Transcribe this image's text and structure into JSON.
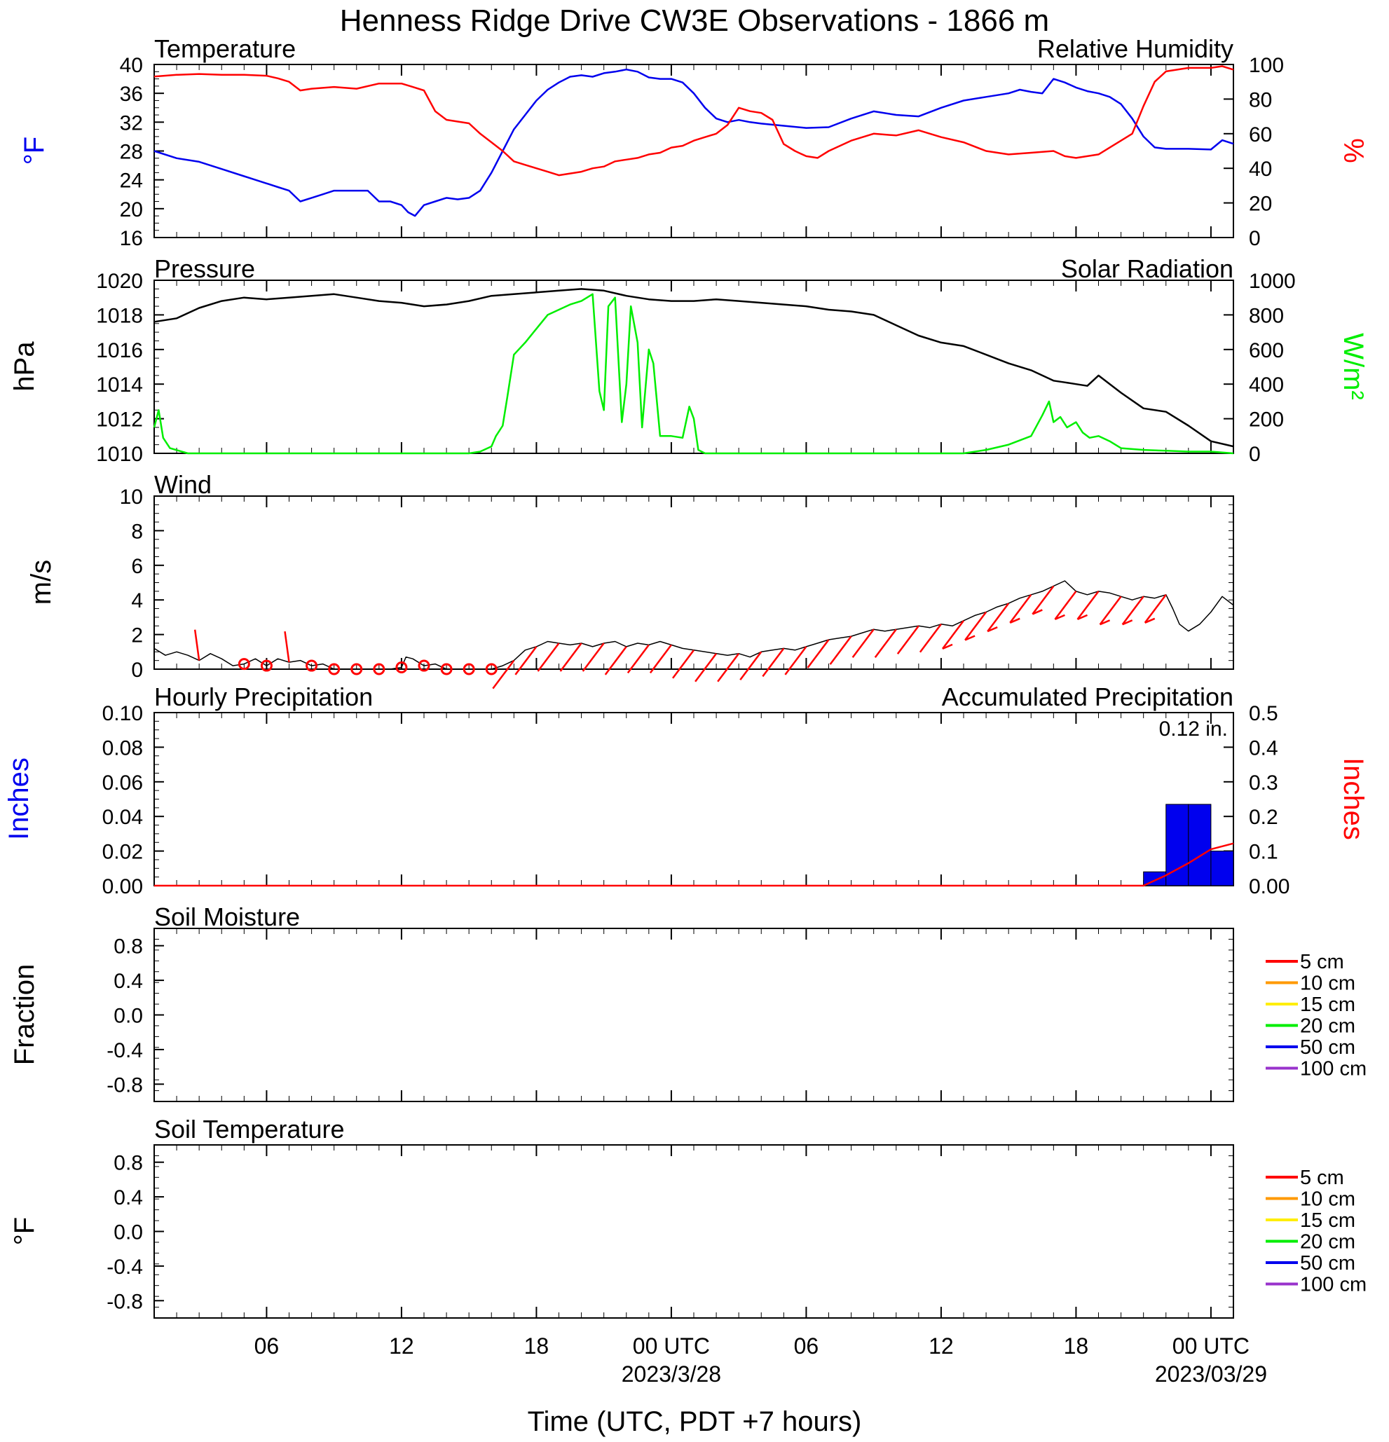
{
  "title": "Henness Ridge Drive CW3E Observations - 1866 m",
  "colors": {
    "temperature": "#0000ee",
    "humidity": "#ff0000",
    "pressure": "#000000",
    "solar": "#00ee00",
    "wind": "#000000",
    "barbs": "#ff0000",
    "hourly_precip": "#0000ee",
    "accum_precip": "#ff0000"
  },
  "x_axis": {
    "label": "Time (UTC, PDT +7 hours)",
    "range_hours": [
      0,
      48
    ],
    "ticks": [
      {
        "hour": 5,
        "label": "06",
        "sub": ""
      },
      {
        "hour": 11,
        "label": "12",
        "sub": ""
      },
      {
        "hour": 17,
        "label": "18",
        "sub": ""
      },
      {
        "hour": 23,
        "label": "00 UTC",
        "sub": "2023/3/28"
      },
      {
        "hour": 29,
        "label": "06",
        "sub": ""
      },
      {
        "hour": 35,
        "label": "12",
        "sub": ""
      },
      {
        "hour": 41,
        "label": "18",
        "sub": ""
      },
      {
        "hour": 47,
        "label": "00 UTC",
        "sub": "2023/03/29"
      }
    ]
  },
  "soil_legend": [
    {
      "label": "5 cm",
      "color": "#ff0000"
    },
    {
      "label": "10 cm",
      "color": "#ff9900"
    },
    {
      "label": "15 cm",
      "color": "#ffee00"
    },
    {
      "label": "20 cm",
      "color": "#00ee00"
    },
    {
      "label": "50 cm",
      "color": "#0000ee"
    },
    {
      "label": "100 cm",
      "color": "#9933cc"
    }
  ],
  "chart_data": [
    {
      "type": "line",
      "panel": "temperature-humidity",
      "left_title": "Temperature",
      "right_title": "Relative Humidity",
      "left_ylabel": "°F",
      "right_ylabel": "%",
      "left_ylim": [
        16,
        40
      ],
      "left_ticks": [
        "16",
        "20",
        "24",
        "28",
        "32",
        "36",
        "40"
      ],
      "right_ylim": [
        0,
        100
      ],
      "right_ticks": [
        "0",
        "20",
        "40",
        "60",
        "80",
        "100"
      ],
      "series": [
        {
          "key": "temperature",
          "axis": "left",
          "x": [
            0,
            1,
            2,
            3,
            4,
            5,
            5.5,
            6,
            6.5,
            7,
            7.5,
            8,
            8.5,
            9,
            9.5,
            10,
            10.5,
            11,
            11.3,
            11.6,
            12,
            12.5,
            13,
            13.5,
            14,
            14.5,
            15,
            15.5,
            16,
            16.5,
            17,
            17.5,
            18,
            18.5,
            19,
            19.5,
            20,
            20.5,
            21,
            21.5,
            22,
            22.5,
            23,
            23.5,
            24,
            24.5,
            25,
            25.5,
            26,
            26.5,
            27,
            28,
            29,
            30,
            31,
            32,
            33,
            34,
            35,
            36,
            37,
            38,
            38.5,
            39,
            39.5,
            40,
            40.5,
            41,
            41.5,
            42,
            42.5,
            43,
            43.5,
            44,
            44.5,
            45,
            46,
            47,
            47.5,
            48
          ],
          "values": [
            28,
            27,
            26.5,
            25.5,
            24.5,
            23.5,
            23,
            22.5,
            21,
            21.5,
            22,
            22.5,
            22.5,
            22.5,
            22.5,
            21,
            21,
            20.5,
            19.5,
            19,
            20.5,
            21,
            21.5,
            21.3,
            21.5,
            22.5,
            25,
            28,
            31,
            33,
            35,
            36.5,
            37.5,
            38.3,
            38.5,
            38.3,
            38.8,
            39,
            39.3,
            39,
            38.2,
            38,
            38,
            37.5,
            36,
            34,
            32.5,
            32,
            32.3,
            32,
            31.8,
            31.5,
            31.2,
            31.3,
            32.5,
            33.5,
            33,
            32.8,
            34,
            35,
            35.5,
            36,
            36.5,
            36.2,
            36,
            38,
            37.5,
            36.8,
            36.3,
            36,
            35.5,
            34.5,
            32.5,
            30,
            28.5,
            28.3,
            28.3,
            28.2,
            29.5,
            29
          ]
        },
        {
          "key": "humidity",
          "axis": "right",
          "x": [
            0,
            1,
            2,
            3,
            4,
            5,
            5.5,
            6,
            6.5,
            7,
            8,
            9,
            10,
            11,
            11.5,
            12,
            12.5,
            13,
            13.5,
            14,
            14.5,
            15,
            15.5,
            16,
            16.5,
            17,
            17.5,
            18,
            18.5,
            19,
            19.5,
            20,
            20.5,
            21,
            21.5,
            22,
            22.5,
            23,
            23.5,
            24,
            24.5,
            25,
            25.5,
            26,
            26.5,
            27,
            27.5,
            28,
            28.5,
            29,
            29.5,
            30,
            31,
            32,
            33,
            34,
            35,
            36,
            37,
            38,
            39,
            40,
            40.5,
            41,
            41.5,
            42,
            42.5,
            43,
            43.5,
            44,
            44.5,
            45,
            45.5,
            46,
            47,
            47.5,
            48
          ],
          "values": [
            93,
            94,
            94.5,
            94,
            94,
            93.5,
            92,
            90,
            85,
            86,
            87,
            86,
            89,
            89,
            87,
            85,
            73,
            68,
            67,
            66,
            60,
            55,
            50,
            44,
            42,
            40,
            38,
            36,
            37,
            38,
            40,
            41,
            44,
            45,
            46,
            48,
            49,
            52,
            53,
            56,
            58,
            60,
            65,
            75,
            73,
            72,
            68,
            54,
            50,
            47,
            46,
            50,
            56,
            60,
            59,
            62,
            58,
            55,
            50,
            48,
            49,
            50,
            47,
            46,
            47,
            48,
            52,
            56,
            60,
            76,
            90,
            96,
            97,
            98,
            98,
            99,
            97
          ]
        }
      ]
    },
    {
      "type": "line",
      "panel": "pressure-solar",
      "left_title": "Pressure",
      "right_title": "Solar Radiation",
      "left_ylabel": "hPa",
      "right_ylabel": "W/m²",
      "left_ylim": [
        1010,
        1020
      ],
      "left_ticks": [
        "1010",
        "1012",
        "1014",
        "1016",
        "1018",
        "1020"
      ],
      "right_ylim": [
        0,
        1000
      ],
      "right_ticks": [
        "0",
        "200",
        "400",
        "600",
        "800",
        "1000"
      ],
      "series": [
        {
          "key": "pressure",
          "axis": "left",
          "x": [
            0,
            1,
            2,
            3,
            4,
            5,
            6,
            7,
            8,
            9,
            10,
            11,
            12,
            13,
            14,
            15,
            16,
            17,
            18,
            19,
            20,
            21,
            22,
            23,
            24,
            25,
            26,
            27,
            28,
            29,
            30,
            31,
            32,
            33,
            34,
            35,
            36,
            37,
            38,
            39,
            40,
            40.5,
            41,
            41.5,
            42,
            43,
            44,
            45,
            46,
            47,
            48
          ],
          "values": [
            1017.6,
            1017.8,
            1018.4,
            1018.8,
            1019,
            1018.9,
            1019,
            1019.1,
            1019.2,
            1019,
            1018.8,
            1018.7,
            1018.5,
            1018.6,
            1018.8,
            1019.1,
            1019.2,
            1019.3,
            1019.4,
            1019.5,
            1019.4,
            1019.1,
            1018.9,
            1018.8,
            1018.8,
            1018.9,
            1018.8,
            1018.7,
            1018.6,
            1018.5,
            1018.3,
            1018.2,
            1018,
            1017.4,
            1016.8,
            1016.4,
            1016.2,
            1015.7,
            1015.2,
            1014.8,
            1014.2,
            1014.1,
            1014,
            1013.9,
            1014.5,
            1013.5,
            1012.6,
            1012.4,
            1011.6,
            1010.7,
            1010.4
          ]
        },
        {
          "key": "solar",
          "axis": "right",
          "x": [
            0,
            0.2,
            0.4,
            0.7,
            1.5,
            5,
            10,
            13,
            14,
            14.5,
            15,
            15.2,
            15.5,
            15.7,
            16,
            16.5,
            17,
            17.5,
            18,
            18.5,
            19,
            19.5,
            19.8,
            20,
            20.2,
            20.5,
            20.8,
            21,
            21.2,
            21.5,
            21.7,
            22,
            22.2,
            22.5,
            23,
            23.5,
            23.8,
            24,
            24.2,
            24.5,
            25,
            26,
            30,
            36,
            37,
            38,
            39,
            39.5,
            39.8,
            40,
            40.3,
            40.6,
            41,
            41.3,
            41.6,
            42,
            42.5,
            43,
            44,
            45,
            46,
            47,
            48
          ],
          "values": [
            150,
            250,
            90,
            30,
            0,
            0,
            0,
            0,
            0,
            10,
            40,
            100,
            160,
            320,
            570,
            640,
            720,
            800,
            830,
            860,
            880,
            920,
            360,
            250,
            850,
            900,
            180,
            400,
            850,
            640,
            150,
            600,
            520,
            100,
            100,
            90,
            270,
            200,
            20,
            0,
            0,
            0,
            0,
            0,
            20,
            50,
            100,
            220,
            300,
            180,
            210,
            150,
            180,
            120,
            90,
            100,
            70,
            30,
            20,
            15,
            10,
            10,
            0
          ]
        }
      ]
    },
    {
      "type": "line",
      "panel": "wind",
      "title": "Wind",
      "ylabel": "m/s",
      "ylim": [
        0,
        10
      ],
      "ticks": [
        "0",
        "2",
        "4",
        "6",
        "8",
        "10"
      ],
      "series": [
        {
          "key": "wind",
          "x": [
            0,
            0.5,
            1,
            1.5,
            2,
            2.5,
            3,
            3.5,
            4,
            4.5,
            5,
            5.5,
            6,
            6.5,
            7,
            7.5,
            8,
            9,
            10,
            10.5,
            11,
            11.2,
            11.5,
            12,
            12.5,
            13,
            14,
            15,
            15.5,
            16,
            16.5,
            17,
            17.5,
            18,
            18.5,
            19,
            19.5,
            20,
            20.5,
            21,
            21.5,
            22,
            22.5,
            23,
            23.5,
            24,
            24.5,
            25,
            25.5,
            26,
            26.5,
            27,
            27.5,
            28,
            28.5,
            29,
            29.5,
            30,
            30.5,
            31,
            31.5,
            32,
            32.5,
            33,
            33.5,
            34,
            34.5,
            35,
            35.5,
            36,
            36.5,
            37,
            37.5,
            38,
            38.5,
            39,
            39.5,
            40,
            40.5,
            41,
            41.5,
            42,
            42.5,
            43,
            43.5,
            44,
            44.5,
            45,
            45.3,
            45.6,
            46,
            46.5,
            47,
            47.5,
            48
          ],
          "values": [
            1.2,
            0.8,
            1,
            0.8,
            0.5,
            0.9,
            0.6,
            0.2,
            0.3,
            0.6,
            0.2,
            0.6,
            0.4,
            0.5,
            0.2,
            0.3,
            0,
            0,
            0,
            0,
            0.1,
            0.7,
            0.6,
            0.2,
            0.3,
            0,
            0,
            0,
            0.2,
            0.5,
            1.1,
            1.3,
            1.6,
            1.5,
            1.4,
            1.5,
            1.3,
            1.5,
            1.6,
            1.3,
            1.5,
            1.4,
            1.6,
            1.4,
            1.2,
            1.1,
            1,
            0.9,
            0.8,
            0.9,
            0.7,
            1,
            1.1,
            1.2,
            1.1,
            1.3,
            1.5,
            1.7,
            1.8,
            1.9,
            2.1,
            2.3,
            2.2,
            2.3,
            2.4,
            2.5,
            2.4,
            2.6,
            2.5,
            2.8,
            3.1,
            3.3,
            3.6,
            3.8,
            4.1,
            4.3,
            4.5,
            4.8,
            5.1,
            4.5,
            4.3,
            4.5,
            4.4,
            4.2,
            4,
            4.2,
            4.1,
            4.3,
            3.5,
            2.6,
            2.2,
            2.6,
            3.3,
            4.2,
            3.7
          ]
        }
      ],
      "barb_hours": [
        2,
        4,
        5,
        6,
        7,
        8,
        9,
        10,
        11,
        12,
        13,
        14,
        15,
        16,
        17,
        18,
        19,
        20,
        21,
        22,
        23,
        24,
        25,
        26,
        27,
        28,
        29,
        30,
        31,
        32,
        33,
        34,
        35,
        36,
        37,
        38,
        39,
        40,
        41,
        42,
        43,
        44,
        45
      ]
    },
    {
      "type": "bar",
      "panel": "precipitation",
      "left_title": "Hourly Precipitation",
      "right_title": "Accumulated Precipitation",
      "annotation": "0.12 in.",
      "left_ylabel": "Inches",
      "right_ylabel": "Inches",
      "left_ylim": [
        0,
        0.1
      ],
      "left_ticks": [
        "0.00",
        "0.02",
        "0.04",
        "0.06",
        "0.08",
        "0.10"
      ],
      "right_ylim": [
        0,
        0.5
      ],
      "right_ticks": [
        "0.00",
        "0.1",
        "0.2",
        "0.3",
        "0.4",
        "0.5"
      ],
      "bars": {
        "hour_start": [
          44,
          45,
          46,
          47
        ],
        "values": [
          0.008,
          0.047,
          0.047,
          0.02
        ]
      },
      "accumulated": {
        "x": [
          0,
          44,
          45,
          46,
          47,
          48
        ],
        "values": [
          0,
          0,
          0.03,
          0.065,
          0.105,
          0.122
        ]
      }
    },
    {
      "type": "line",
      "panel": "soil-moisture",
      "title": "Soil Moisture",
      "ylabel": "Fraction",
      "ylim": [
        -1,
        1
      ],
      "ticks": [
        "-0.8",
        "-0.4",
        "0.0",
        "0.4",
        "0.8"
      ],
      "series": []
    },
    {
      "type": "line",
      "panel": "soil-temperature",
      "title": "Soil Temperature",
      "ylabel": "°F",
      "ylim": [
        -1,
        1
      ],
      "ticks": [
        "-0.8",
        "-0.4",
        "0.0",
        "0.4",
        "0.8"
      ],
      "series": []
    }
  ]
}
